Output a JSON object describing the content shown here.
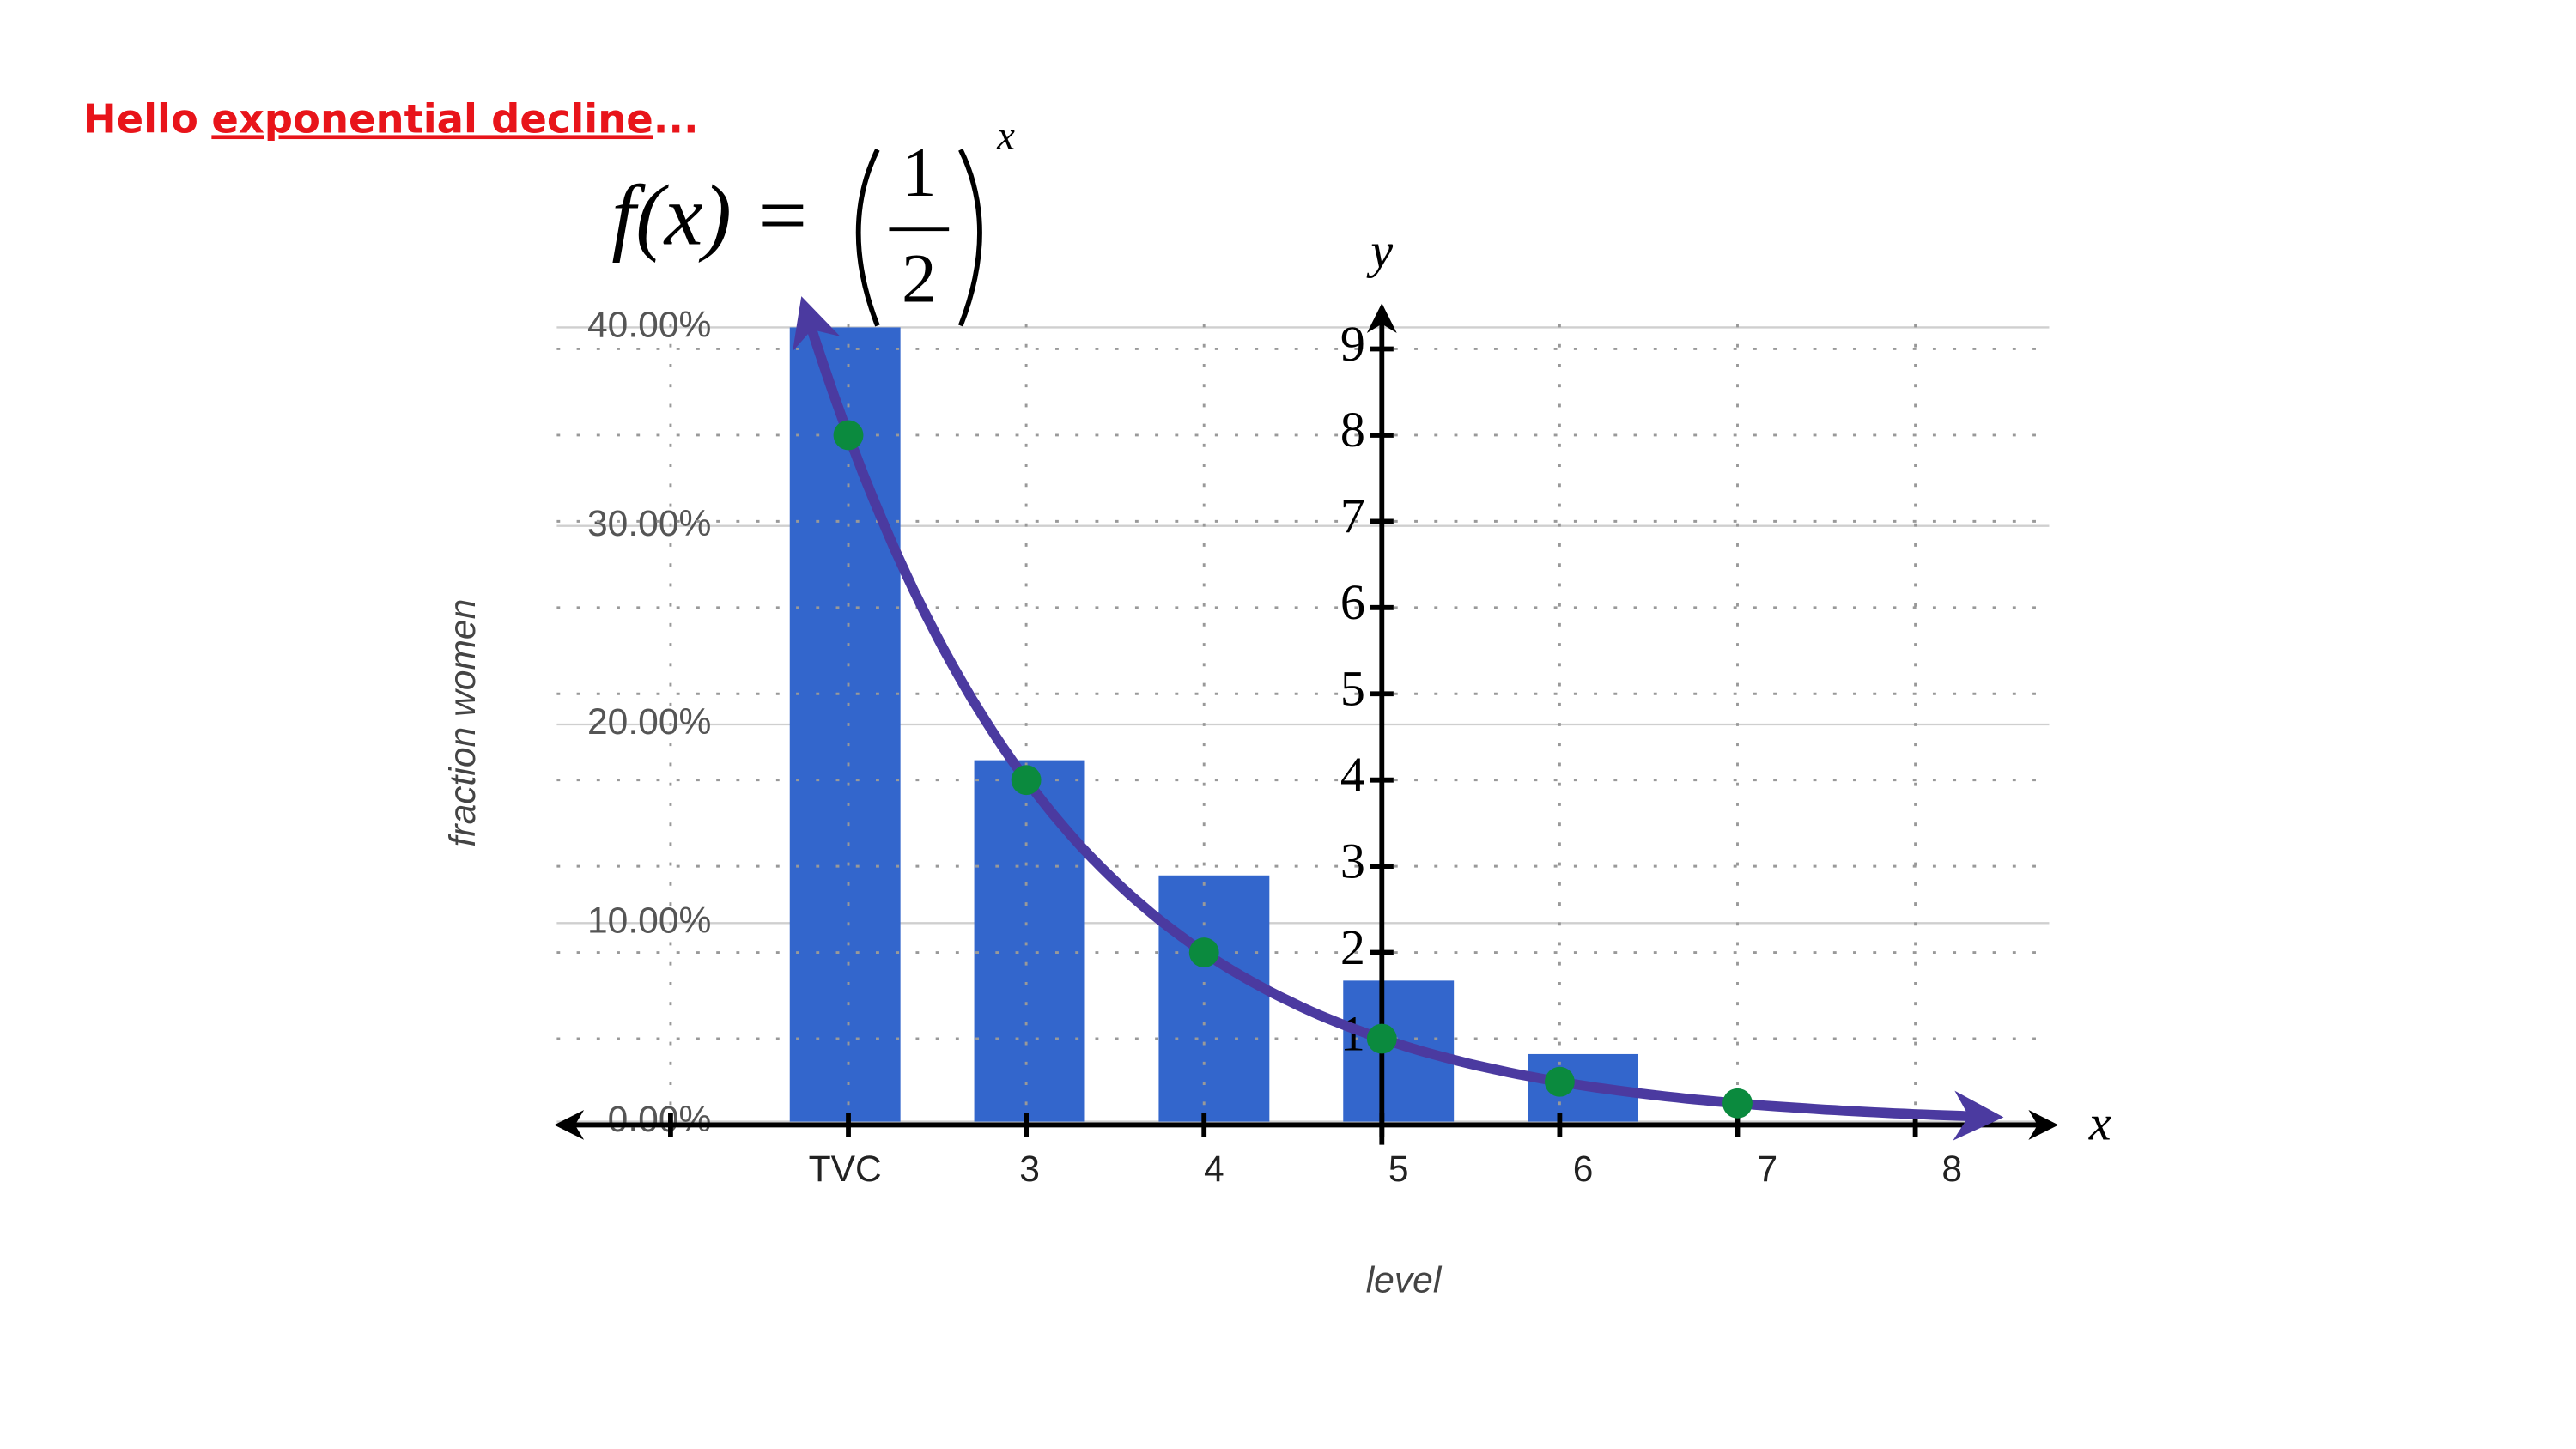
{
  "heading": {
    "prefix": "Hello",
    "underlined": "exponential decline",
    "suffix": "..."
  },
  "chart_data": [
    {
      "type": "bar",
      "categories": [
        "TVC",
        "3",
        "4",
        "5",
        "6",
        "7",
        "8"
      ],
      "values": [
        40,
        18.2,
        12.4,
        7.1,
        3.4,
        null,
        null
      ],
      "color": "#3366cc",
      "xlabel": "level",
      "ylabel": "fraction women",
      "ylim": [
        0,
        40
      ],
      "yticks": [
        {
          "value": 0,
          "label": "0.00%"
        },
        {
          "value": 10,
          "label": "10.00%"
        },
        {
          "value": 20,
          "label": "20.00%"
        },
        {
          "value": 30,
          "label": "30.00%"
        },
        {
          "value": 40,
          "label": "40.00%"
        }
      ],
      "grid": true
    },
    {
      "type": "line",
      "title": {
        "lhs": "f(x) =",
        "numerator": "1",
        "denominator": "2",
        "exponent": "x"
      },
      "x": [
        -3,
        -2,
        -1,
        0,
        1,
        2
      ],
      "values": [
        8,
        4,
        2,
        1,
        0.5,
        0.25
      ],
      "color": "#4b3aa0",
      "marker_color": "#0b8a3e",
      "xlabel": "x",
      "ylabel": "y",
      "xlim": [
        -4.64,
        3.79
      ],
      "ylim": [
        0,
        9.5
      ],
      "xticks": [
        -4,
        -3,
        -2,
        -1,
        0,
        1,
        2,
        3
      ],
      "yticks": [
        1,
        2,
        3,
        4,
        5,
        6,
        7,
        8,
        9
      ],
      "grid": true
    }
  ]
}
